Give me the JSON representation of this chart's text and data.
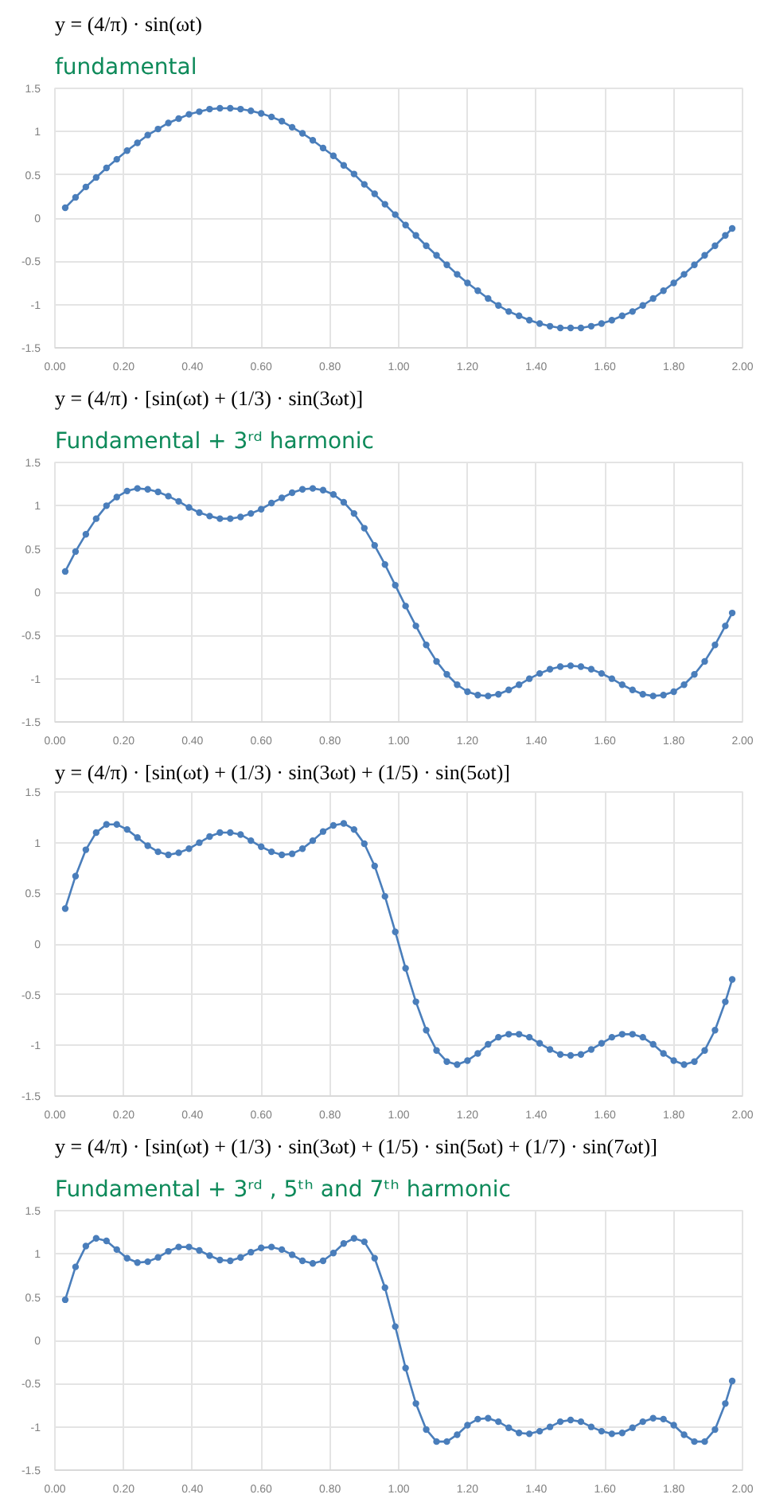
{
  "chart_data": [
    {
      "type": "line",
      "title": "y = (4/π) · sin(ωt)",
      "subtitle": "fundamental",
      "marker": "circle",
      "line_style": "solid",
      "grid": true,
      "x": [
        0.03,
        0.06,
        0.09,
        0.12,
        0.15,
        0.18,
        0.21,
        0.24,
        0.27,
        0.3,
        0.33,
        0.36,
        0.39,
        0.42,
        0.45,
        0.48,
        0.51,
        0.54,
        0.57,
        0.6,
        0.63,
        0.66,
        0.69,
        0.72,
        0.75,
        0.78,
        0.81,
        0.84,
        0.87,
        0.9,
        0.93,
        0.96,
        0.99,
        1.02,
        1.05,
        1.08,
        1.11,
        1.14,
        1.17,
        1.2,
        1.23,
        1.26,
        1.29,
        1.32,
        1.35,
        1.38,
        1.41,
        1.44,
        1.47,
        1.5,
        1.53,
        1.56,
        1.59,
        1.62,
        1.65,
        1.68,
        1.71,
        1.74,
        1.77,
        1.8,
        1.83,
        1.86,
        1.89,
        1.92,
        1.95,
        1.97
      ],
      "series": [
        {
          "color": "#4a7ebb",
          "values": [
            0.12,
            0.24,
            0.36,
            0.47,
            0.58,
            0.68,
            0.78,
            0.87,
            0.96,
            1.03,
            1.1,
            1.15,
            1.2,
            1.23,
            1.26,
            1.27,
            1.27,
            1.26,
            1.24,
            1.21,
            1.17,
            1.12,
            1.05,
            0.98,
            0.9,
            0.81,
            0.72,
            0.61,
            0.51,
            0.39,
            0.28,
            0.16,
            0.04,
            -0.08,
            -0.2,
            -0.32,
            -0.43,
            -0.54,
            -0.65,
            -0.75,
            -0.84,
            -0.93,
            -1.01,
            -1.08,
            -1.13,
            -1.18,
            -1.22,
            -1.25,
            -1.27,
            -1.27,
            -1.27,
            -1.25,
            -1.22,
            -1.18,
            -1.13,
            -1.08,
            -1.01,
            -0.93,
            -0.84,
            -0.75,
            -0.65,
            -0.54,
            -0.43,
            -0.32,
            -0.2,
            -0.12
          ]
        }
      ],
      "xlim": [
        0,
        2
      ],
      "ylim": [
        -1.5,
        1.5
      ],
      "xticks": [
        {
          "value": 0,
          "label": "0.00"
        },
        {
          "value": 0.2,
          "label": "0.20"
        },
        {
          "value": 0.4,
          "label": "0.40"
        },
        {
          "value": 0.6,
          "label": "0.60"
        },
        {
          "value": 0.8,
          "label": "0.80"
        },
        {
          "value": 1,
          "label": "1.00"
        },
        {
          "value": 1.2,
          "label": "1.20"
        },
        {
          "value": 1.4,
          "label": "1.40"
        },
        {
          "value": 1.6,
          "label": "1.60"
        },
        {
          "value": 1.8,
          "label": "1.80"
        },
        {
          "value": 2,
          "label": "2.00"
        }
      ],
      "yticks": [
        -1.5,
        -1,
        -0.5,
        0,
        0.5,
        1,
        1.5
      ]
    },
    {
      "type": "line",
      "title": "y = (4/π) · [sin(ωt) + (1/3) · sin(3ωt)]",
      "subtitle": "Fundamental + 3ʳᵈ harmonic",
      "marker": "circle",
      "line_style": "solid",
      "grid": true,
      "x": [
        0.03,
        0.06,
        0.09,
        0.12,
        0.15,
        0.18,
        0.21,
        0.24,
        0.27,
        0.3,
        0.33,
        0.36,
        0.39,
        0.42,
        0.45,
        0.48,
        0.51,
        0.54,
        0.57,
        0.6,
        0.63,
        0.66,
        0.69,
        0.72,
        0.75,
        0.78,
        0.81,
        0.84,
        0.87,
        0.9,
        0.93,
        0.96,
        0.99,
        1.02,
        1.05,
        1.08,
        1.11,
        1.14,
        1.17,
        1.2,
        1.23,
        1.26,
        1.29,
        1.32,
        1.35,
        1.38,
        1.41,
        1.44,
        1.47,
        1.5,
        1.53,
        1.56,
        1.59,
        1.62,
        1.65,
        1.68,
        1.71,
        1.74,
        1.77,
        1.8,
        1.83,
        1.86,
        1.89,
        1.92,
        1.95,
        1.97
      ],
      "series": [
        {
          "color": "#4a7ebb",
          "values": [
            0.24,
            0.47,
            0.67,
            0.85,
            1.0,
            1.1,
            1.17,
            1.2,
            1.19,
            1.16,
            1.11,
            1.05,
            0.98,
            0.92,
            0.88,
            0.85,
            0.85,
            0.87,
            0.91,
            0.96,
            1.03,
            1.09,
            1.15,
            1.19,
            1.2,
            1.18,
            1.13,
            1.04,
            0.91,
            0.74,
            0.54,
            0.32,
            0.08,
            -0.16,
            -0.39,
            -0.61,
            -0.8,
            -0.95,
            -1.07,
            -1.15,
            -1.19,
            -1.2,
            -1.18,
            -1.13,
            -1.07,
            -1.0,
            -0.94,
            -0.89,
            -0.86,
            -0.85,
            -0.86,
            -0.89,
            -0.94,
            -1.0,
            -1.07,
            -1.13,
            -1.18,
            -1.2,
            -1.19,
            -1.15,
            -1.07,
            -0.95,
            -0.8,
            -0.61,
            -0.39,
            -0.24
          ]
        }
      ],
      "xlim": [
        0,
        2
      ],
      "ylim": [
        -1.5,
        1.5
      ],
      "xticks": [
        {
          "value": 0,
          "label": "0.00"
        },
        {
          "value": 0.2,
          "label": "0.20"
        },
        {
          "value": 0.4,
          "label": "0.40"
        },
        {
          "value": 0.6,
          "label": "0.60"
        },
        {
          "value": 0.8,
          "label": "0.80"
        },
        {
          "value": 1,
          "label": "1.00"
        },
        {
          "value": 1.2,
          "label": "1.20"
        },
        {
          "value": 1.4,
          "label": "1.40"
        },
        {
          "value": 1.6,
          "label": "1.60"
        },
        {
          "value": 1.8,
          "label": "1.80"
        },
        {
          "value": 2,
          "label": "2.00"
        }
      ],
      "yticks": [
        -1.5,
        -1,
        -0.5,
        0,
        0.5,
        1,
        1.5
      ]
    },
    {
      "type": "line",
      "title": "y = (4/π) · [sin(ωt) + (1/3) · sin(3ωt) + (1/5) · sin(5ωt)]",
      "marker": "circle",
      "line_style": "solid",
      "grid": true,
      "x": [
        0.03,
        0.06,
        0.09,
        0.12,
        0.15,
        0.18,
        0.21,
        0.24,
        0.27,
        0.3,
        0.33,
        0.36,
        0.39,
        0.42,
        0.45,
        0.48,
        0.51,
        0.54,
        0.57,
        0.6,
        0.63,
        0.66,
        0.69,
        0.72,
        0.75,
        0.78,
        0.81,
        0.84,
        0.87,
        0.9,
        0.93,
        0.96,
        0.99,
        1.02,
        1.05,
        1.08,
        1.11,
        1.14,
        1.17,
        1.2,
        1.23,
        1.26,
        1.29,
        1.32,
        1.35,
        1.38,
        1.41,
        1.44,
        1.47,
        1.5,
        1.53,
        1.56,
        1.59,
        1.62,
        1.65,
        1.68,
        1.71,
        1.74,
        1.77,
        1.8,
        1.83,
        1.86,
        1.89,
        1.92,
        1.95,
        1.97
      ],
      "series": [
        {
          "color": "#4a7ebb",
          "values": [
            0.35,
            0.67,
            0.93,
            1.1,
            1.18,
            1.18,
            1.13,
            1.05,
            0.97,
            0.91,
            0.88,
            0.9,
            0.94,
            1.0,
            1.06,
            1.1,
            1.1,
            1.08,
            1.02,
            0.96,
            0.91,
            0.88,
            0.89,
            0.94,
            1.02,
            1.11,
            1.17,
            1.19,
            1.13,
            0.99,
            0.77,
            0.47,
            0.12,
            -0.24,
            -0.57,
            -0.85,
            -1.05,
            -1.16,
            -1.19,
            -1.15,
            -1.08,
            -0.99,
            -0.92,
            -0.89,
            -0.89,
            -0.92,
            -0.98,
            -1.04,
            -1.09,
            -1.1,
            -1.09,
            -1.04,
            -0.98,
            -0.92,
            -0.89,
            -0.89,
            -0.92,
            -0.99,
            -1.08,
            -1.15,
            -1.19,
            -1.16,
            -1.05,
            -0.85,
            -0.57,
            -0.35
          ]
        }
      ],
      "xlim": [
        0,
        2
      ],
      "ylim": [
        -1.5,
        1.5
      ],
      "xticks": [
        {
          "value": 0,
          "label": "0.00"
        },
        {
          "value": 0.2,
          "label": "0.20"
        },
        {
          "value": 0.4,
          "label": "0.40"
        },
        {
          "value": 0.6,
          "label": "0.60"
        },
        {
          "value": 0.8,
          "label": "0.80"
        },
        {
          "value": 1,
          "label": "1.00"
        },
        {
          "value": 1.2,
          "label": "1.20"
        },
        {
          "value": 1.4,
          "label": "1.40"
        },
        {
          "value": 1.6,
          "label": "1.60"
        },
        {
          "value": 1.8,
          "label": "1.80"
        },
        {
          "value": 2,
          "label": "2.00"
        }
      ],
      "yticks": [
        -1.5,
        -1,
        -0.5,
        0,
        0.5,
        1,
        1.5
      ]
    },
    {
      "type": "line",
      "title": "y = (4/π) · [sin(ωt) + (1/3) · sin(3ωt) + (1/5) · sin(5ωt) + (1/7) · sin(7ωt)]",
      "subtitle": "Fundamental + 3ʳᵈ , 5ᵗʰ and 7ᵗʰ harmonic",
      "marker": "circle",
      "line_style": "solid",
      "grid": true,
      "x": [
        0.03,
        0.06,
        0.09,
        0.12,
        0.15,
        0.18,
        0.21,
        0.24,
        0.27,
        0.3,
        0.33,
        0.36,
        0.39,
        0.42,
        0.45,
        0.48,
        0.51,
        0.54,
        0.57,
        0.6,
        0.63,
        0.66,
        0.69,
        0.72,
        0.75,
        0.78,
        0.81,
        0.84,
        0.87,
        0.9,
        0.93,
        0.96,
        0.99,
        1.02,
        1.05,
        1.08,
        1.11,
        1.14,
        1.17,
        1.2,
        1.23,
        1.26,
        1.29,
        1.32,
        1.35,
        1.38,
        1.41,
        1.44,
        1.47,
        1.5,
        1.53,
        1.56,
        1.59,
        1.62,
        1.65,
        1.68,
        1.71,
        1.74,
        1.77,
        1.8,
        1.83,
        1.86,
        1.89,
        1.92,
        1.95,
        1.97
      ],
      "series": [
        {
          "color": "#4a7ebb",
          "values": [
            0.47,
            0.85,
            1.09,
            1.18,
            1.15,
            1.05,
            0.95,
            0.9,
            0.91,
            0.96,
            1.03,
            1.08,
            1.08,
            1.04,
            0.98,
            0.93,
            0.92,
            0.96,
            1.02,
            1.07,
            1.08,
            1.05,
            0.99,
            0.92,
            0.89,
            0.92,
            1.01,
            1.12,
            1.18,
            1.14,
            0.95,
            0.61,
            0.16,
            -0.32,
            -0.73,
            -1.03,
            -1.17,
            -1.17,
            -1.09,
            -0.98,
            -0.91,
            -0.9,
            -0.94,
            -1.01,
            -1.07,
            -1.08,
            -1.05,
            -1.0,
            -0.94,
            -0.92,
            -0.94,
            -1.0,
            -1.05,
            -1.08,
            -1.07,
            -1.01,
            -0.94,
            -0.9,
            -0.91,
            -0.98,
            -1.09,
            -1.17,
            -1.17,
            -1.03,
            -0.73,
            -0.47
          ]
        }
      ],
      "xlim": [
        0,
        2
      ],
      "ylim": [
        -1.5,
        1.5
      ],
      "xticks": [
        {
          "value": 0,
          "label": "0.00"
        },
        {
          "value": 0.2,
          "label": "0.20"
        },
        {
          "value": 0.4,
          "label": "0.40"
        },
        {
          "value": 0.6,
          "label": "0.60"
        },
        {
          "value": 0.8,
          "label": "0.80"
        },
        {
          "value": 1,
          "label": "1.00"
        },
        {
          "value": 1.2,
          "label": "1.20"
        },
        {
          "value": 1.4,
          "label": "1.40"
        },
        {
          "value": 1.6,
          "label": "1.60"
        },
        {
          "value": 1.8,
          "label": "1.80"
        },
        {
          "value": 2,
          "label": "2.00"
        }
      ],
      "yticks": [
        -1.5,
        -1,
        -0.5,
        0,
        0.5,
        1,
        1.5
      ]
    }
  ]
}
